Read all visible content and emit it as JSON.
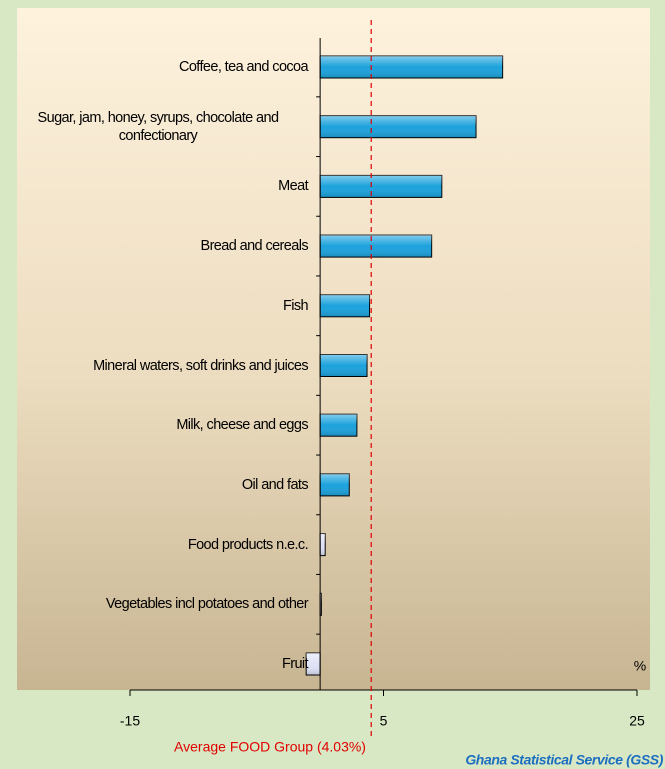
{
  "chart_data": {
    "type": "hbar",
    "categories": [
      "Coffee, tea and cocoa",
      "Sugar, jam, honey, syrups, chocolate and confectionary",
      "Meat",
      "Bread and cereals",
      "Fish",
      "Mineral waters, soft drinks and juices",
      "Milk, cheese and eggs",
      "Oil and fats",
      "Food products n.e.c.",
      "Vegetables incl potatoes and other",
      "Fruit"
    ],
    "values": [
      14.4,
      12.3,
      9.6,
      8.8,
      3.9,
      3.7,
      2.9,
      2.3,
      0.4,
      0.1,
      -1.1
    ],
    "colors": [
      "#1ca2dc",
      "#1ca2dc",
      "#1ca2dc",
      "#1ca2dc",
      "#1ca2dc",
      "#1ca2dc",
      "#1ca2dc",
      "#1ca2dc",
      "#dfe2f6",
      "#dfe2f6",
      "#dfe2f6"
    ],
    "xlim": [
      -15,
      25
    ],
    "xticks": [
      -15,
      5,
      25
    ],
    "x_unit_label": "%",
    "reference_line": {
      "value": 4.03,
      "label": "Average FOOD Group (4.03%)",
      "color": "#e00000"
    },
    "source": "Ghana Statistical Service (GSS)"
  }
}
